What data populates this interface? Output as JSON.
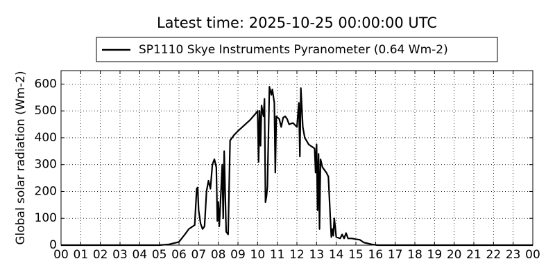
{
  "chart_data": {
    "type": "line",
    "title": "Latest time: 2025-10-25 00:00:00 UTC",
    "y_label": "Global solar radiation (Wm-2)",
    "legend": "upper center",
    "grid": true,
    "series": [
      {
        "name": "SP1110 Skye Instruments Pyranometer (0.64 Wm-2)",
        "color": "#000000",
        "x": [
          0,
          5,
          5.5,
          6,
          6.3,
          6.5,
          6.8,
          6.9,
          6.95,
          7.0,
          7.1,
          7.2,
          7.3,
          7.4,
          7.5,
          7.6,
          7.7,
          7.8,
          7.9,
          7.95,
          8.0,
          8.05,
          8.15,
          8.2,
          8.25,
          8.3,
          8.4,
          8.5,
          8.6,
          8.8,
          9.0,
          9.3,
          9.6,
          9.9,
          10.0,
          10.05,
          10.1,
          10.15,
          10.2,
          10.3,
          10.35,
          10.4,
          10.45,
          10.5,
          10.6,
          10.7,
          10.75,
          10.85,
          10.9,
          10.95,
          11.1,
          11.2,
          11.3,
          11.4,
          11.5,
          11.6,
          11.8,
          12.0,
          12.1,
          12.15,
          12.2,
          12.3,
          12.4,
          12.6,
          12.9,
          12.95,
          13.0,
          13.05,
          13.1,
          13.15,
          13.2,
          13.3,
          13.5,
          13.6,
          13.7,
          13.75,
          13.8,
          13.85,
          13.9,
          14.0,
          14.2,
          14.3,
          14.4,
          14.5,
          14.6,
          14.8,
          15.0,
          15.2,
          15.4,
          15.8,
          16.1,
          24
        ],
        "values": [
          0,
          0,
          3,
          12,
          40,
          60,
          75,
          210,
          215,
          130,
          80,
          60,
          70,
          200,
          240,
          210,
          300,
          320,
          290,
          90,
          160,
          70,
          220,
          300,
          100,
          350,
          50,
          40,
          390,
          410,
          425,
          445,
          465,
          490,
          500,
          310,
          500,
          370,
          520,
          480,
          545,
          160,
          180,
          220,
          590,
          560,
          580,
          530,
          270,
          480,
          470,
          440,
          475,
          480,
          470,
          450,
          455,
          440,
          530,
          330,
          585,
          440,
          400,
          375,
          360,
          270,
          375,
          130,
          340,
          60,
          320,
          290,
          270,
          255,
          100,
          30,
          60,
          35,
          100,
          30,
          25,
          40,
          25,
          45,
          25,
          25,
          22,
          20,
          10,
          3,
          0,
          0
        ]
      }
    ],
    "xlim": [
      0,
      24
    ],
    "xticks": [
      {
        "value": 0,
        "label": "00"
      },
      {
        "value": 1,
        "label": "01"
      },
      {
        "value": 2,
        "label": "02"
      },
      {
        "value": 3,
        "label": "03"
      },
      {
        "value": 4,
        "label": "04"
      },
      {
        "value": 5,
        "label": "05"
      },
      {
        "value": 6,
        "label": "06"
      },
      {
        "value": 7,
        "label": "07"
      },
      {
        "value": 8,
        "label": "08"
      },
      {
        "value": 9,
        "label": "09"
      },
      {
        "value": 10,
        "label": "10"
      },
      {
        "value": 11,
        "label": "11"
      },
      {
        "value": 12,
        "label": "12"
      },
      {
        "value": 13,
        "label": "13"
      },
      {
        "value": 14,
        "label": "14"
      },
      {
        "value": 15,
        "label": "15"
      },
      {
        "value": 16,
        "label": "16"
      },
      {
        "value": 17,
        "label": "17"
      },
      {
        "value": 18,
        "label": "18"
      },
      {
        "value": 19,
        "label": "19"
      },
      {
        "value": 20,
        "label": "20"
      },
      {
        "value": 21,
        "label": "21"
      },
      {
        "value": 22,
        "label": "22"
      },
      {
        "value": 23,
        "label": "23"
      },
      {
        "value": 24,
        "label": "00"
      }
    ],
    "ylim": [
      0,
      650
    ],
    "yticks": [
      0,
      100,
      200,
      300,
      400,
      500,
      600
    ]
  }
}
